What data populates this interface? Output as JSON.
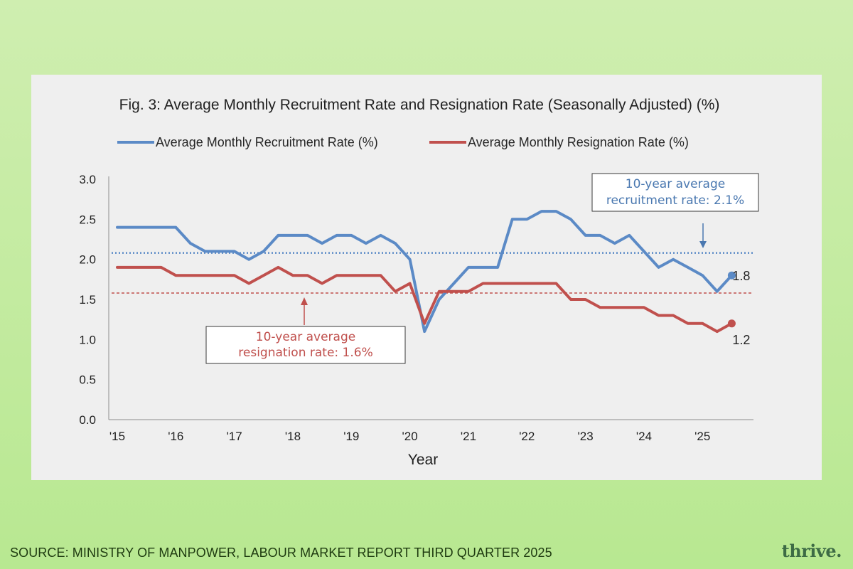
{
  "chart_data": {
    "type": "line",
    "title": "Fig. 3: Average Monthly Recruitment Rate and Resignation Rate (Seasonally Adjusted) (%)",
    "xlabel": "Year",
    "ylabel": "",
    "ylim": [
      0,
      3.0
    ],
    "y_ticks": [
      "0.0",
      "0.5",
      "1.0",
      "1.5",
      "2.0",
      "2.5",
      "3.0"
    ],
    "x_ticks": [
      "'15",
      "'16",
      "'17",
      "'18",
      "'19",
      "'20",
      "'21",
      "'22",
      "'23",
      "'24",
      "'25"
    ],
    "x_range": [
      2015.0,
      2025.75
    ],
    "grid": false,
    "legend_position": "top",
    "series": [
      {
        "name": "Average Monthly Recruitment Rate (%)",
        "color": "#5b8ac6",
        "x": [
          2015.0,
          2015.25,
          2015.5,
          2015.75,
          2016.0,
          2016.25,
          2016.5,
          2016.75,
          2017.0,
          2017.25,
          2017.5,
          2017.75,
          2018.0,
          2018.25,
          2018.5,
          2018.75,
          2019.0,
          2019.25,
          2019.5,
          2019.75,
          2020.0,
          2020.25,
          2020.5,
          2020.75,
          2021.0,
          2021.25,
          2021.5,
          2021.75,
          2022.0,
          2022.25,
          2022.5,
          2022.75,
          2023.0,
          2023.25,
          2023.5,
          2023.75,
          2024.0,
          2024.25,
          2024.5,
          2024.75,
          2025.0,
          2025.25,
          2025.5
        ],
        "values": [
          2.4,
          2.4,
          2.4,
          2.4,
          2.4,
          2.2,
          2.1,
          2.1,
          2.1,
          2.0,
          2.1,
          2.3,
          2.3,
          2.3,
          2.2,
          2.3,
          2.3,
          2.2,
          2.3,
          2.2,
          2.0,
          1.1,
          1.5,
          1.7,
          1.9,
          1.9,
          1.9,
          2.5,
          2.5,
          2.6,
          2.6,
          2.5,
          2.3,
          2.3,
          2.2,
          2.3,
          2.1,
          1.9,
          2.0,
          1.9,
          1.8,
          1.6,
          1.8
        ],
        "end_label": "1.8",
        "average": 2.08,
        "average_label_line1": "10-year average",
        "average_label_line2": "recruitment rate: 2.1%"
      },
      {
        "name": "Average Monthly Resignation Rate (%)",
        "color": "#c0504d",
        "x": [
          2015.0,
          2015.25,
          2015.5,
          2015.75,
          2016.0,
          2016.25,
          2016.5,
          2016.75,
          2017.0,
          2017.25,
          2017.5,
          2017.75,
          2018.0,
          2018.25,
          2018.5,
          2018.75,
          2019.0,
          2019.25,
          2019.5,
          2019.75,
          2020.0,
          2020.25,
          2020.5,
          2020.75,
          2021.0,
          2021.25,
          2021.5,
          2021.75,
          2022.0,
          2022.25,
          2022.5,
          2022.75,
          2023.0,
          2023.25,
          2023.5,
          2023.75,
          2024.0,
          2024.25,
          2024.5,
          2024.75,
          2025.0,
          2025.25,
          2025.5
        ],
        "values": [
          1.9,
          1.9,
          1.9,
          1.9,
          1.8,
          1.8,
          1.8,
          1.8,
          1.8,
          1.7,
          1.8,
          1.9,
          1.8,
          1.8,
          1.7,
          1.8,
          1.8,
          1.8,
          1.8,
          1.6,
          1.7,
          1.2,
          1.6,
          1.6,
          1.6,
          1.7,
          1.7,
          1.7,
          1.7,
          1.7,
          1.7,
          1.5,
          1.5,
          1.4,
          1.4,
          1.4,
          1.4,
          1.3,
          1.3,
          1.2,
          1.2,
          1.1,
          1.2
        ],
        "end_label": "1.2",
        "average": 1.58,
        "average_label_line1": "10-year average",
        "average_label_line2": "resignation rate: 1.6%"
      }
    ]
  },
  "footer": {
    "source": "SOURCE: MINISTRY OF MANPOWER, LABOUR MARKET REPORT THIRD QUARTER 2025",
    "brand": "thrive."
  }
}
